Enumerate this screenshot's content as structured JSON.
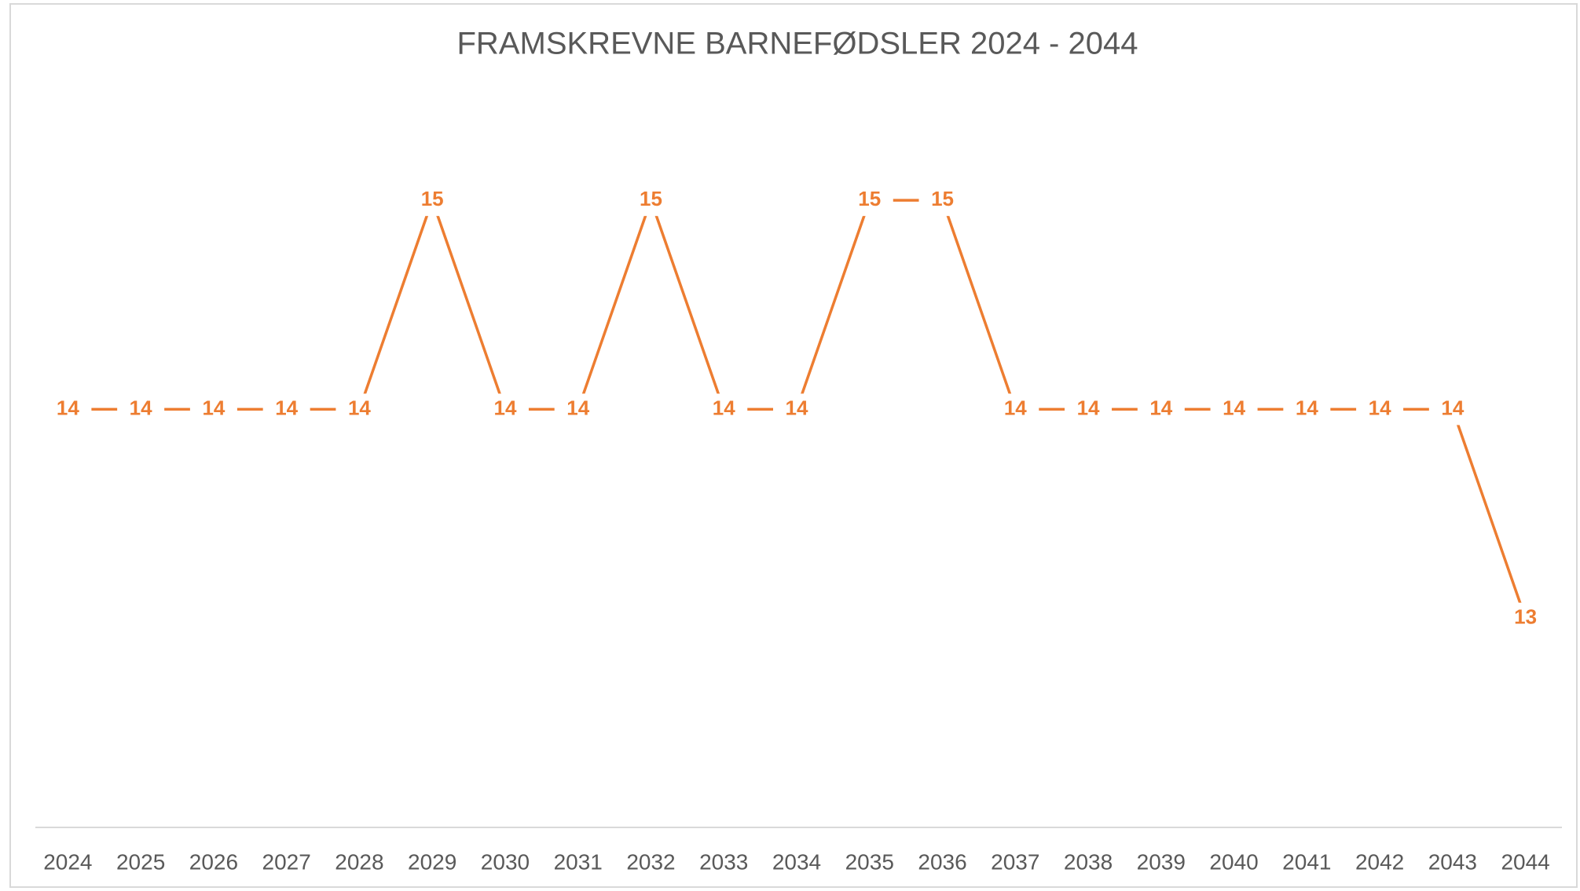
{
  "chart_data": {
    "type": "line",
    "title": "FRAMSKREVNE BARNEFØDSLER 2024 - 2044",
    "categories": [
      "2024",
      "2025",
      "2026",
      "2027",
      "2028",
      "2029",
      "2030",
      "2031",
      "2032",
      "2033",
      "2034",
      "2035",
      "2036",
      "2037",
      "2038",
      "2039",
      "2040",
      "2041",
      "2042",
      "2043",
      "2044"
    ],
    "values": [
      14,
      14,
      14,
      14,
      14,
      15,
      14,
      14,
      15,
      14,
      14,
      15,
      15,
      14,
      14,
      14,
      14,
      14,
      14,
      14,
      13
    ],
    "color": "#ed7d31",
    "ylim": [
      12,
      15.5
    ]
  }
}
